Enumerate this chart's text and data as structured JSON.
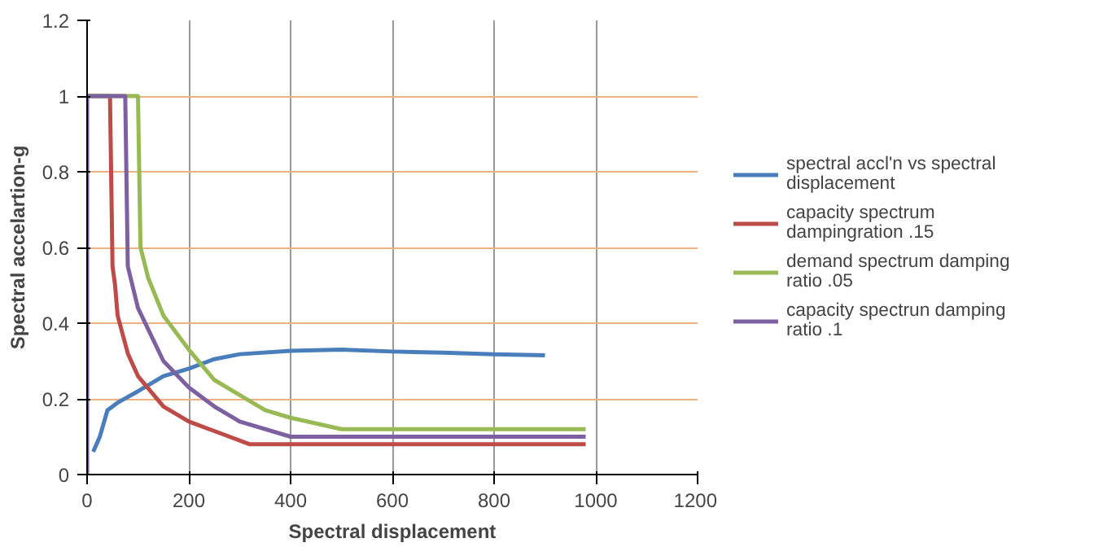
{
  "chart_data": {
    "type": "line",
    "xlabel": "Spectral displacement",
    "ylabel": "Spectral accelartion-g",
    "xlim": [
      0,
      1200
    ],
    "xticks": [
      0,
      200,
      400,
      600,
      800,
      1000,
      1200
    ],
    "ylim": [
      0,
      1.2
    ],
    "yticks": [
      0,
      0.2,
      0.4,
      0.6,
      0.8,
      1,
      1.2
    ],
    "grid": true,
    "legend": "right",
    "series": [
      {
        "name": "spectral accl'n vs spectral displacement",
        "color": "#4a7ebb",
        "x": [
          12,
          25,
          40,
          60,
          100,
          150,
          200,
          250,
          300,
          400,
          500,
          600,
          700,
          800,
          900
        ],
        "values": [
          0.06,
          0.1,
          0.17,
          0.19,
          0.22,
          0.26,
          0.28,
          0.305,
          0.318,
          0.327,
          0.33,
          0.325,
          0.322,
          0.318,
          0.315
        ]
      },
      {
        "name": "capacity spectrum dampingration .15",
        "color": "#be4b48",
        "x": [
          0,
          45,
          50,
          55,
          60,
          80,
          100,
          150,
          200,
          250,
          320,
          980
        ],
        "values": [
          1,
          1,
          0.55,
          0.5,
          0.42,
          0.32,
          0.26,
          0.18,
          0.14,
          0.115,
          0.08,
          0.08
        ]
      },
      {
        "name": "demand spectrum damping ratio .05",
        "color": "#98b954",
        "x": [
          0,
          100,
          105,
          120,
          150,
          200,
          250,
          300,
          350,
          400,
          500,
          980
        ],
        "values": [
          1,
          1,
          0.6,
          0.52,
          0.42,
          0.33,
          0.25,
          0.21,
          0.17,
          0.15,
          0.12,
          0.12
        ]
      },
      {
        "name": "capacity spectrun damping ratio .1",
        "color": "#7d60a0",
        "x": [
          0,
          0,
          75,
          80,
          100,
          150,
          200,
          250,
          300,
          400,
          980
        ],
        "values": [
          0,
          1,
          1,
          0.55,
          0.44,
          0.3,
          0.23,
          0.18,
          0.14,
          0.1,
          0.1
        ]
      }
    ]
  }
}
